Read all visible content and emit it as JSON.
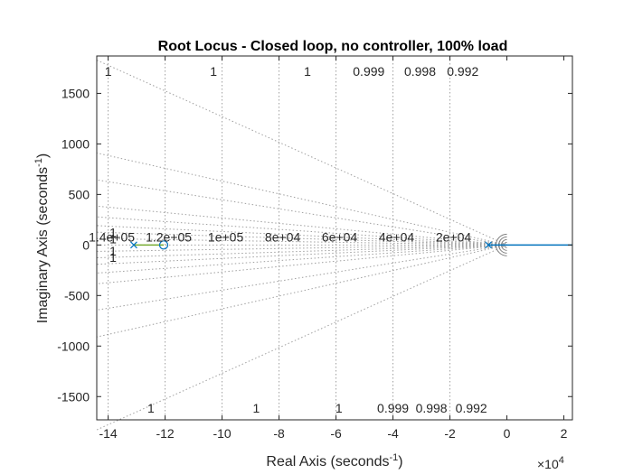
{
  "chart_data": {
    "type": "line",
    "title": "Root Locus - Closed loop, no controller, 100% load",
    "xlabel": "Real Axis (seconds",
    "xlabel_sup": "-1",
    "xlabel_end": ")",
    "ylabel": "Imaginary Axis (seconds",
    "ylabel_sup": "-1",
    "ylabel_end": ")",
    "x_exponent_base": "×10",
    "x_exponent_power": "4",
    "xlim": [
      -14.4,
      2.3
    ],
    "ylim": [
      -1730,
      1870
    ],
    "x_ticks": [
      -14,
      -12,
      -10,
      -8,
      -6,
      -4,
      -2,
      0,
      2
    ],
    "x_tick_labels": [
      "-14",
      "-12",
      "-10",
      "-8",
      "-6",
      "-4",
      "-2",
      "0",
      "2"
    ],
    "y_ticks": [
      -1500,
      -1000,
      -500,
      0,
      500,
      1000,
      1500
    ],
    "y_tick_labels": [
      "-1500",
      "-1000",
      "-500",
      "0",
      "500",
      "1000",
      "1500"
    ],
    "grid": true,
    "damping_lines": [
      {
        "label": "1",
        "slope": 0.0133,
        "label_x": -14.0,
        "side": "top"
      },
      {
        "label": "1",
        "slope": 0.0193,
        "label_x": -10.3,
        "side": "top"
      },
      {
        "label": "1",
        "slope": 0.0267,
        "label_x": -7.0,
        "side": "top"
      },
      {
        "label": "0.999",
        "slope": 0.0447,
        "label_x": -4.85,
        "side": "top"
      },
      {
        "label": "0.998",
        "slope": 0.0632,
        "label_x": -3.05,
        "side": "top"
      },
      {
        "label": "0.992",
        "slope": 0.127,
        "label_x": -1.55,
        "side": "top"
      },
      {
        "label": "1",
        "slope": 0.0088,
        "label_x": -13.95,
        "side": "left"
      },
      {
        "label": "1",
        "slope": 0.0044,
        "label_x": -13.95,
        "side": "left"
      },
      {
        "label": "1",
        "slope": 0.0133,
        "label_x": -12.5,
        "side": "bottom"
      },
      {
        "label": "1",
        "slope": 0.0193,
        "label_x": -8.8,
        "side": "bottom"
      },
      {
        "label": "1",
        "slope": 0.0267,
        "label_x": -5.9,
        "side": "bottom"
      },
      {
        "label": "0.999",
        "slope": 0.0447,
        "label_x": -4.0,
        "side": "bottom"
      },
      {
        "label": "0.998",
        "slope": 0.0632,
        "label_x": -2.65,
        "side": "bottom"
      },
      {
        "label": "0.992",
        "slope": 0.127,
        "label_x": -1.25,
        "side": "bottom"
      },
      {
        "label": "1",
        "slope": 0.0088,
        "label_x": -13.95,
        "side": "left-bottom"
      },
      {
        "label": "1",
        "slope": 0.0044,
        "label_x": -13.95,
        "side": "left-bottom"
      }
    ],
    "natural_freq_labels": [
      {
        "label": "1.4e+05",
        "x": -14.0
      },
      {
        "label": "1.2e+05",
        "x": -12.0
      },
      {
        "label": "1e+05",
        "x": -10.0
      },
      {
        "label": "8e+04",
        "x": -8.0
      },
      {
        "label": "6e+04",
        "x": -6.0
      },
      {
        "label": "4e+04",
        "x": -4.0
      },
      {
        "label": "2e+04",
        "x": -2.0
      }
    ],
    "series": [
      {
        "name": "",
        "color": "#0072BD",
        "x": [
          -0.65,
          -0.3,
          0,
          2.3
        ],
        "y": [
          0,
          0,
          0,
          0
        ]
      },
      {
        "name": "",
        "color": "#77AC30",
        "x": [
          -13.1,
          -12.05
        ],
        "y": [
          0,
          0
        ]
      }
    ],
    "poles": [
      {
        "x": -13.1,
        "y": 0
      },
      {
        "x": -0.65,
        "y": 0
      }
    ],
    "zeros": [
      {
        "x": -12.05,
        "y": 0
      }
    ],
    "pole_color": "#0072BD",
    "zero_color": "#0072BD"
  }
}
